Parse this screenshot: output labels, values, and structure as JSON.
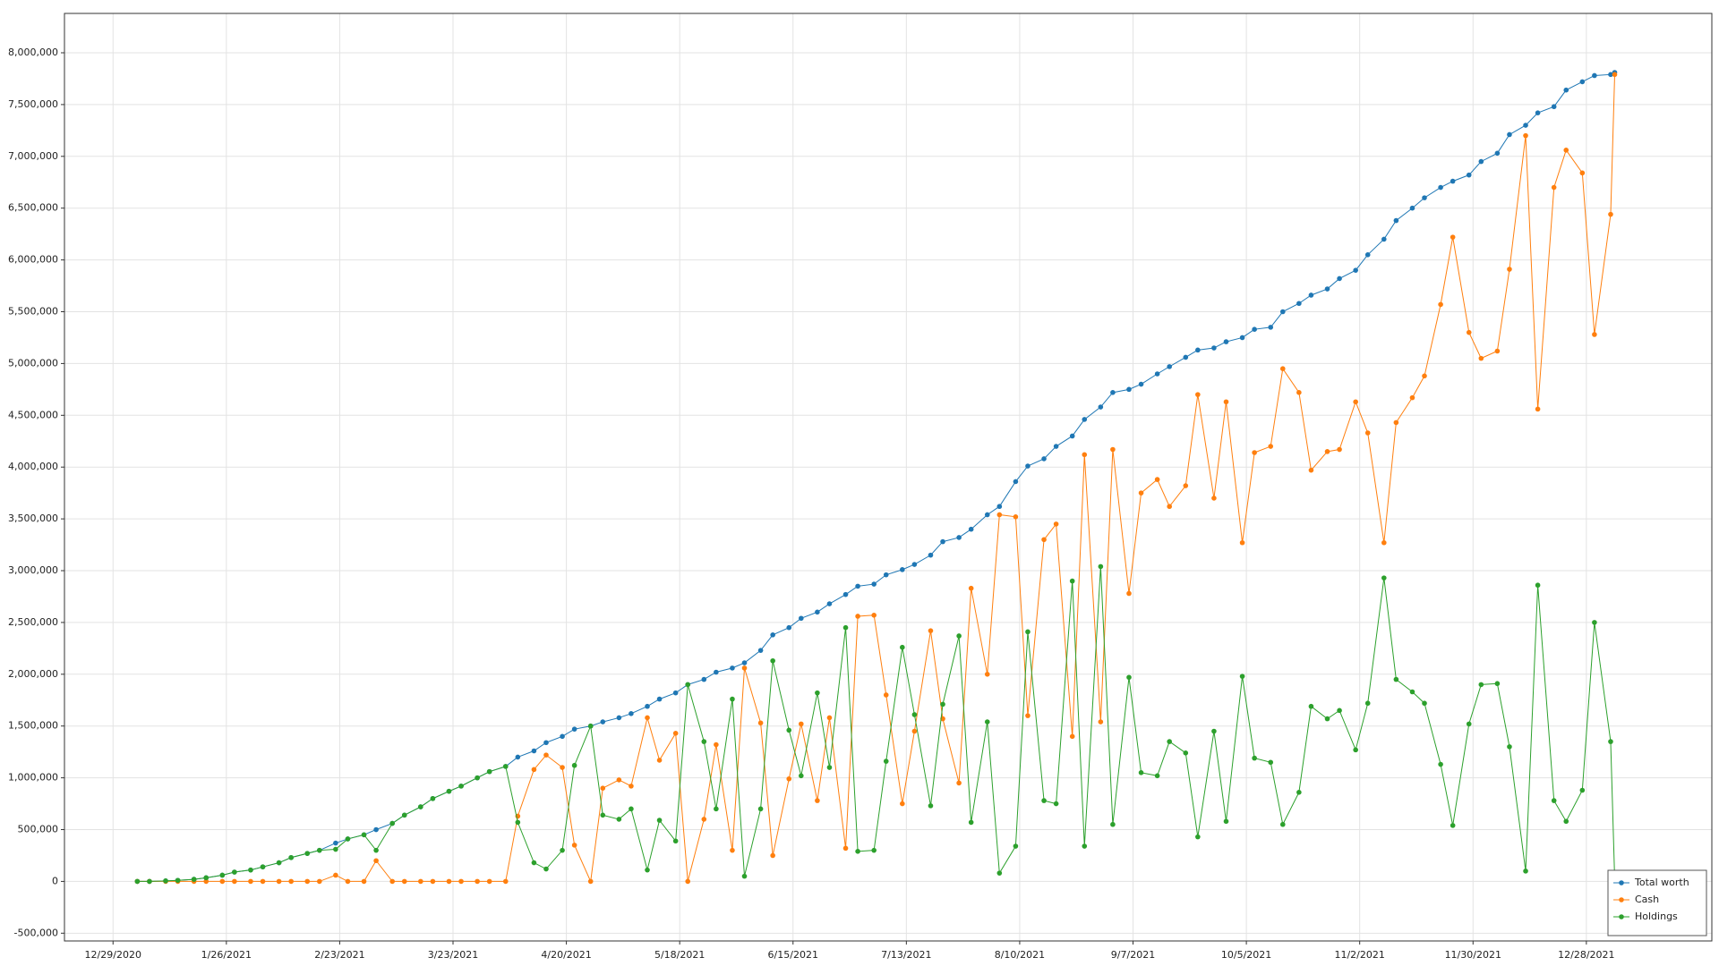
{
  "chart_data": {
    "type": "line",
    "x": [
      "2021-01-04",
      "2021-01-07",
      "2021-01-11",
      "2021-01-14",
      "2021-01-18",
      "2021-01-21",
      "2021-01-25",
      "2021-01-28",
      "2021-02-01",
      "2021-02-04",
      "2021-02-08",
      "2021-02-11",
      "2021-02-15",
      "2021-02-18",
      "2021-02-22",
      "2021-02-25",
      "2021-03-01",
      "2021-03-04",
      "2021-03-08",
      "2021-03-11",
      "2021-03-15",
      "2021-03-18",
      "2021-03-22",
      "2021-03-25",
      "2021-03-29",
      "2021-04-01",
      "2021-04-05",
      "2021-04-08",
      "2021-04-12",
      "2021-04-15",
      "2021-04-19",
      "2021-04-22",
      "2021-04-26",
      "2021-04-29",
      "2021-05-03",
      "2021-05-06",
      "2021-05-10",
      "2021-05-13",
      "2021-05-17",
      "2021-05-20",
      "2021-05-24",
      "2021-05-27",
      "2021-05-31",
      "2021-06-03",
      "2021-06-07",
      "2021-06-10",
      "2021-06-14",
      "2021-06-17",
      "2021-06-21",
      "2021-06-24",
      "2021-06-28",
      "2021-07-01",
      "2021-07-05",
      "2021-07-08",
      "2021-07-12",
      "2021-07-15",
      "2021-07-19",
      "2021-07-22",
      "2021-07-26",
      "2021-07-29",
      "2021-08-02",
      "2021-08-05",
      "2021-08-09",
      "2021-08-12",
      "2021-08-16",
      "2021-08-19",
      "2021-08-23",
      "2021-08-26",
      "2021-08-30",
      "2021-09-02",
      "2021-09-06",
      "2021-09-09",
      "2021-09-13",
      "2021-09-16",
      "2021-09-20",
      "2021-09-23",
      "2021-09-27",
      "2021-09-30",
      "2021-10-04",
      "2021-10-07",
      "2021-10-11",
      "2021-10-14",
      "2021-10-18",
      "2021-10-21",
      "2021-10-25",
      "2021-10-28",
      "2021-11-01",
      "2021-11-04",
      "2021-11-08",
      "2021-11-11",
      "2021-11-15",
      "2021-11-18",
      "2021-11-22",
      "2021-11-25",
      "2021-11-29",
      "2021-12-02",
      "2021-12-06",
      "2021-12-09",
      "2021-12-13",
      "2021-12-16",
      "2021-12-20",
      "2021-12-23",
      "2021-12-27",
      "2021-12-30",
      "2022-01-03",
      "2022-01-04"
    ],
    "series": [
      {
        "name": "Total worth",
        "color": "#1f77b4",
        "values": [
          0,
          0,
          5000,
          10000,
          20000,
          35000,
          60000,
          90000,
          110000,
          140000,
          180000,
          230000,
          270000,
          300000,
          370000,
          410000,
          450000,
          500000,
          560000,
          640000,
          720000,
          800000,
          870000,
          920000,
          1000000,
          1060000,
          1110000,
          1200000,
          1260000,
          1340000,
          1400000,
          1470000,
          1500000,
          1540000,
          1580000,
          1620000,
          1690000,
          1760000,
          1820000,
          1900000,
          1950000,
          2020000,
          2060000,
          2110000,
          2230000,
          2380000,
          2450000,
          2540000,
          2600000,
          2680000,
          2770000,
          2850000,
          2870000,
          2960000,
          3010000,
          3060000,
          3150000,
          3280000,
          3320000,
          3400000,
          3540000,
          3620000,
          3860000,
          4010000,
          4080000,
          4200000,
          4300000,
          4460000,
          4580000,
          4720000,
          4750000,
          4800000,
          4900000,
          4970000,
          5060000,
          5130000,
          5150000,
          5210000,
          5250000,
          5330000,
          5350000,
          5500000,
          5580000,
          5660000,
          5720000,
          5820000,
          5900000,
          6050000,
          6200000,
          6380000,
          6500000,
          6600000,
          6700000,
          6760000,
          6820000,
          6950000,
          7030000,
          7210000,
          7300000,
          7420000,
          7480000,
          7640000,
          7720000,
          7780000,
          7790000,
          7810000
        ]
      },
      {
        "name": "Cash",
        "color": "#ff7f0e",
        "values": [
          0,
          0,
          0,
          0,
          0,
          0,
          0,
          0,
          0,
          0,
          0,
          0,
          0,
          0,
          60000,
          0,
          0,
          200000,
          0,
          0,
          0,
          0,
          0,
          0,
          0,
          0,
          0,
          630000,
          1080000,
          1220000,
          1100000,
          350000,
          0,
          900000,
          980000,
          920000,
          1580000,
          1170000,
          1430000,
          0,
          600000,
          1320000,
          300000,
          2060000,
          1530000,
          250000,
          990000,
          1520000,
          780000,
          1580000,
          320000,
          2560000,
          2570000,
          1800000,
          750000,
          1450000,
          2420000,
          1570000,
          950000,
          2830000,
          2000000,
          3540000,
          3520000,
          1600000,
          3300000,
          3450000,
          1400000,
          4120000,
          1540000,
          4170000,
          2780000,
          3750000,
          3880000,
          3620000,
          3820000,
          4700000,
          3700000,
          4630000,
          3270000,
          4140000,
          4200000,
          4950000,
          4720000,
          3970000,
          4150000,
          4170000,
          4630000,
          4330000,
          3270000,
          4430000,
          4670000,
          4880000,
          5570000,
          6220000,
          5300000,
          5050000,
          5120000,
          5910000,
          7200000,
          4560000,
          6700000,
          7060000,
          6840000,
          5280000,
          6440000,
          7790000
        ]
      },
      {
        "name": "Holdings",
        "color": "#2ca02c",
        "values": [
          0,
          0,
          5000,
          10000,
          20000,
          35000,
          60000,
          90000,
          110000,
          140000,
          180000,
          230000,
          270000,
          300000,
          310000,
          410000,
          450000,
          300000,
          560000,
          640000,
          720000,
          800000,
          870000,
          920000,
          1000000,
          1060000,
          1110000,
          570000,
          180000,
          120000,
          300000,
          1120000,
          1500000,
          640000,
          600000,
          700000,
          110000,
          590000,
          390000,
          1900000,
          1350000,
          700000,
          1760000,
          50000,
          700000,
          2130000,
          1460000,
          1020000,
          1820000,
          1100000,
          2450000,
          290000,
          300000,
          1160000,
          2260000,
          1610000,
          730000,
          1710000,
          2370000,
          570000,
          1540000,
          80000,
          340000,
          2410000,
          780000,
          750000,
          2900000,
          340000,
          3040000,
          550000,
          1970000,
          1050000,
          1020000,
          1350000,
          1240000,
          430000,
          1450000,
          580000,
          1980000,
          1190000,
          1150000,
          550000,
          860000,
          1690000,
          1570000,
          1650000,
          1270000,
          1720000,
          2930000,
          1950000,
          1830000,
          1720000,
          1130000,
          540000,
          1520000,
          1900000,
          1910000,
          1300000,
          100000,
          2860000,
          780000,
          580000,
          880000,
          2500000,
          1350000,
          20000
        ]
      }
    ],
    "xlim": [
      "2020-12-17",
      "2022-01-28"
    ],
    "xticks": [
      {
        "value": "2020-12-29",
        "label": "12/29/2020"
      },
      {
        "value": "2021-01-26",
        "label": "1/26/2021"
      },
      {
        "value": "2021-02-23",
        "label": "2/23/2021"
      },
      {
        "value": "2021-03-23",
        "label": "3/23/2021"
      },
      {
        "value": "2021-04-20",
        "label": "4/20/2021"
      },
      {
        "value": "2021-05-18",
        "label": "5/18/2021"
      },
      {
        "value": "2021-06-15",
        "label": "6/15/2021"
      },
      {
        "value": "2021-07-13",
        "label": "7/13/2021"
      },
      {
        "value": "2021-08-10",
        "label": "8/10/2021"
      },
      {
        "value": "2021-09-07",
        "label": "9/7/2021"
      },
      {
        "value": "2021-10-05",
        "label": "10/5/2021"
      },
      {
        "value": "2021-11-02",
        "label": "11/2/2021"
      },
      {
        "value": "2021-11-30",
        "label": "11/30/2021"
      },
      {
        "value": "2021-12-28",
        "label": "12/28/2021"
      }
    ],
    "ylim": [
      -575000,
      8380000
    ],
    "yticks": [
      {
        "value": -500000,
        "label": "-500,000"
      },
      0,
      {
        "value": 500000,
        "label": "500,000"
      },
      {
        "value": 1000000,
        "label": "1,000,000"
      },
      {
        "value": 1500000,
        "label": "1,500,000"
      },
      {
        "value": 2000000,
        "label": "2,000,000"
      },
      {
        "value": 2500000,
        "label": "2,500,000"
      },
      {
        "value": 3000000,
        "label": "3,000,000"
      },
      {
        "value": 3500000,
        "label": "3,500,000"
      },
      {
        "value": 4000000,
        "label": "4,000,000"
      },
      {
        "value": 4500000,
        "label": "4,500,000"
      },
      {
        "value": 5000000,
        "label": "5,000,000"
      },
      {
        "value": 5500000,
        "label": "5,500,000"
      },
      {
        "value": 6000000,
        "label": "6,000,000"
      },
      {
        "value": 6500000,
        "label": "6,500,000"
      },
      {
        "value": 7000000,
        "label": "7,000,000"
      },
      {
        "value": 7500000,
        "label": "7,500,000"
      },
      {
        "value": 8000000,
        "label": "8,000,000"
      }
    ],
    "grid": true,
    "legend": "lower right"
  }
}
